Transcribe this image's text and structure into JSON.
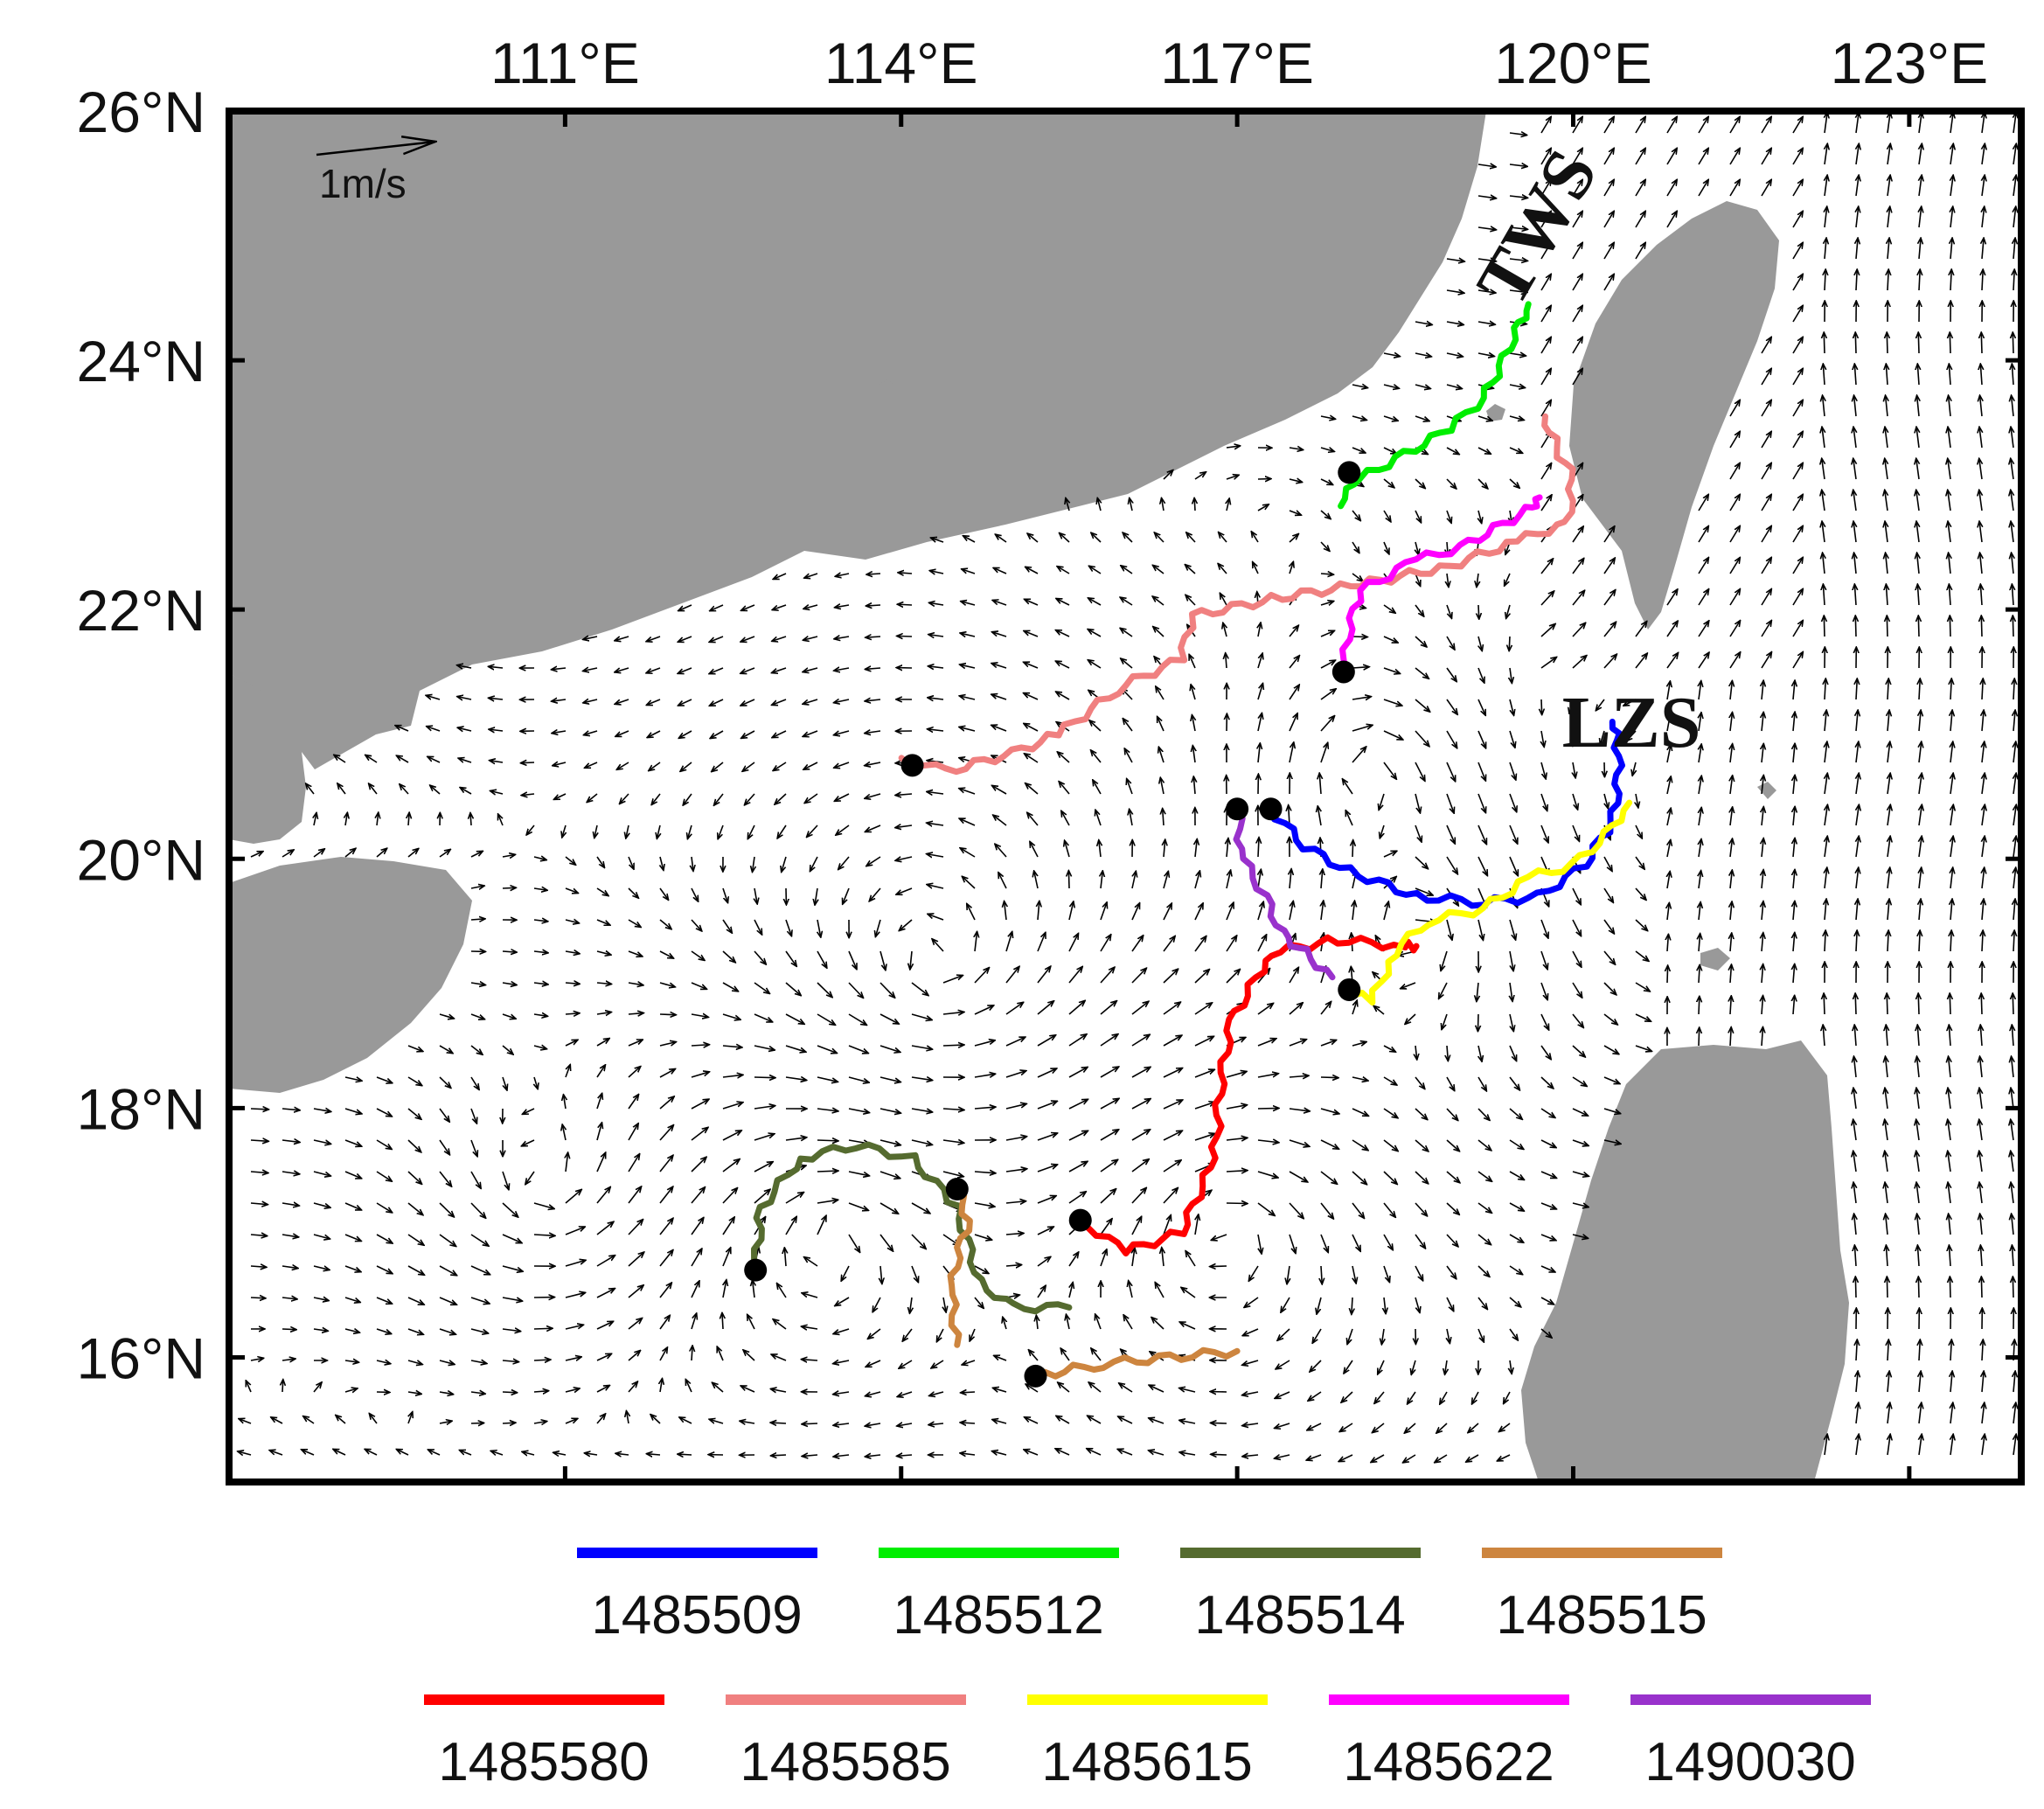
{
  "map": {
    "lon_range": [
      108.0,
      124.0
    ],
    "lat_range": [
      15.0,
      26.0
    ],
    "land_color": "#999999",
    "sea_color": "#ffffff",
    "x_ticks": [
      {
        "lon": 111,
        "label": "111°E"
      },
      {
        "lon": 114,
        "label": "114°E"
      },
      {
        "lon": 117,
        "label": "117°E"
      },
      {
        "lon": 120,
        "label": "120°E"
      },
      {
        "lon": 123,
        "label": "123°E"
      }
    ],
    "y_ticks": [
      {
        "lat": 26,
        "label": "26°N"
      },
      {
        "lat": 24,
        "label": "24°N"
      },
      {
        "lat": 22,
        "label": "22°N"
      },
      {
        "lat": 20,
        "label": "20°N"
      },
      {
        "lat": 18,
        "label": "18°N"
      },
      {
        "lat": 16,
        "label": "16°N"
      }
    ],
    "scale_label": "1m/s",
    "annotations": [
      {
        "text": "TWS",
        "lon": 119.5,
        "lat": 24.4,
        "rotate": -60
      },
      {
        "text": "LZS",
        "lon": 119.9,
        "lat": 20.9,
        "rotate": 0
      }
    ]
  },
  "drifters": [
    {
      "id": "1485509",
      "color": "#0000ff",
      "track": [
        [
          117.3,
          20.4
        ],
        [
          117.6,
          20.1
        ],
        [
          118.0,
          19.9
        ],
        [
          118.6,
          19.7
        ],
        [
          119.2,
          19.65
        ],
        [
          119.7,
          19.7
        ],
        [
          120.1,
          19.95
        ],
        [
          120.35,
          20.3
        ],
        [
          120.4,
          20.6
        ],
        [
          120.4,
          20.9
        ],
        [
          120.35,
          21.1
        ]
      ],
      "start": [
        117.3,
        20.4
      ]
    },
    {
      "id": "1485512",
      "color": "#00ee00",
      "track": [
        [
          117.9,
          22.85
        ],
        [
          118.1,
          23.05
        ],
        [
          118.5,
          23.25
        ],
        [
          118.9,
          23.45
        ],
        [
          119.2,
          23.7
        ],
        [
          119.35,
          23.95
        ],
        [
          119.5,
          24.25
        ],
        [
          119.6,
          24.45
        ]
      ],
      "start": [
        118.0,
        23.1
      ]
    },
    {
      "id": "1485514",
      "color": "#556b2f",
      "track": [
        [
          112.7,
          16.7
        ],
        [
          112.75,
          17.2
        ],
        [
          113.1,
          17.6
        ],
        [
          113.6,
          17.7
        ],
        [
          114.1,
          17.6
        ],
        [
          114.5,
          17.2
        ],
        [
          114.7,
          16.6
        ],
        [
          115.0,
          16.4
        ],
        [
          115.5,
          16.4
        ]
      ],
      "start": [
        112.7,
        16.7
      ]
    },
    {
      "id": "1485515",
      "color": "#cd853f",
      "track": [
        [
          114.5,
          17.35
        ],
        [
          114.6,
          17.1
        ],
        [
          114.5,
          16.8
        ],
        [
          114.45,
          16.5
        ],
        [
          114.5,
          16.1
        ]
      ],
      "start": [
        114.5,
        17.35
      ]
    },
    {
      "id": "1485515",
      "color": "#cd853f",
      "track": [
        [
          115.2,
          15.85
        ],
        [
          115.8,
          15.95
        ],
        [
          116.4,
          16.0
        ],
        [
          117.0,
          16.05
        ]
      ],
      "start": [
        115.2,
        15.85
      ]
    },
    {
      "id": "1485580",
      "color": "#ff0000",
      "track": [
        [
          115.6,
          17.1
        ],
        [
          116.0,
          16.85
        ],
        [
          116.5,
          17.0
        ],
        [
          116.8,
          17.6
        ],
        [
          116.85,
          18.2
        ],
        [
          116.95,
          18.7
        ],
        [
          117.3,
          19.25
        ],
        [
          117.9,
          19.35
        ],
        [
          118.5,
          19.3
        ],
        [
          118.6,
          19.3
        ]
      ],
      "start": [
        115.6,
        17.1
      ]
    },
    {
      "id": "1485585",
      "color": "#f08080",
      "track": [
        [
          114.0,
          20.8
        ],
        [
          114.4,
          20.7
        ],
        [
          115.0,
          20.85
        ],
        [
          115.4,
          21.0
        ],
        [
          116.0,
          21.4
        ],
        [
          116.5,
          21.6
        ],
        [
          116.6,
          21.95
        ],
        [
          117.4,
          22.1
        ],
        [
          118.1,
          22.2
        ],
        [
          118.9,
          22.35
        ],
        [
          119.5,
          22.55
        ],
        [
          119.95,
          22.7
        ],
        [
          120.0,
          23.05
        ],
        [
          119.85,
          23.3
        ],
        [
          119.75,
          23.55
        ]
      ],
      "start": [
        114.1,
        20.75
      ]
    },
    {
      "id": "1485615",
      "color": "#ffff00",
      "track": [
        [
          118.0,
          18.95
        ],
        [
          118.2,
          18.85
        ],
        [
          118.4,
          19.25
        ],
        [
          118.7,
          19.5
        ],
        [
          119.2,
          19.6
        ],
        [
          119.6,
          19.85
        ],
        [
          120.0,
          19.95
        ],
        [
          120.3,
          20.2
        ],
        [
          120.5,
          20.45
        ]
      ],
      "start": [
        118.0,
        18.95
      ]
    },
    {
      "id": "1485622",
      "color": "#ff00ff",
      "track": [
        [
          117.95,
          21.5
        ],
        [
          118.0,
          21.85
        ],
        [
          118.1,
          22.15
        ],
        [
          118.6,
          22.4
        ],
        [
          119.0,
          22.5
        ],
        [
          119.3,
          22.65
        ],
        [
          119.6,
          22.8
        ],
        [
          119.7,
          22.9
        ]
      ],
      "start": [
        117.95,
        21.5
      ]
    },
    {
      "id": "1490030",
      "color": "#9932cc",
      "track": [
        [
          117.0,
          20.4
        ],
        [
          117.05,
          20.0
        ],
        [
          117.25,
          19.7
        ],
        [
          117.4,
          19.4
        ],
        [
          117.6,
          19.25
        ],
        [
          117.85,
          19.05
        ]
      ],
      "start": [
        117.0,
        20.4
      ]
    }
  ],
  "legend": {
    "row1": [
      {
        "label": "1485509",
        "color": "#0000ff"
      },
      {
        "label": "1485512",
        "color": "#00ee00"
      },
      {
        "label": "1485514",
        "color": "#556b2f"
      },
      {
        "label": "1485515",
        "color": "#cd853f"
      }
    ],
    "row2": [
      {
        "label": "1485580",
        "color": "#ff0000"
      },
      {
        "label": "1485585",
        "color": "#f08080"
      },
      {
        "label": "1485615",
        "color": "#ffff00"
      },
      {
        "label": "1485622",
        "color": "#ff00ff"
      },
      {
        "label": "1490030",
        "color": "#9932cc"
      }
    ]
  }
}
